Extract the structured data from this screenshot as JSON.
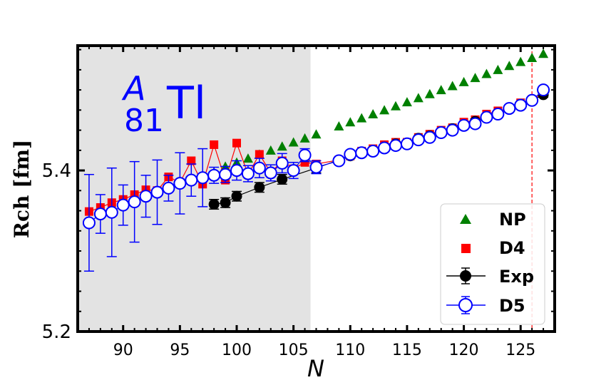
{
  "chart_data": {
    "type": "scatter",
    "title": "",
    "xlabel": "N",
    "ylabel": "Rch [fm]",
    "xlim": [
      86,
      128
    ],
    "ylim": [
      5.2,
      5.555
    ],
    "xticks": [
      90,
      95,
      100,
      105,
      110,
      115,
      120,
      125
    ],
    "yticks": [
      5.2,
      5.4
    ],
    "shaded_region": [
      86,
      106.5
    ],
    "reference_line_x": 126,
    "annotation": {
      "mass": "A",
      "charge": "81",
      "element": "Tl"
    },
    "legend_position": "lower-right",
    "series": [
      {
        "name": "NP",
        "marker": "triangle",
        "color": "#008000",
        "x": [
          98,
          99,
          100,
          101,
          102,
          103,
          104,
          105,
          106,
          107,
          109,
          110,
          111,
          112,
          113,
          114,
          115,
          116,
          117,
          118,
          119,
          120,
          121,
          122,
          123,
          124,
          125,
          126,
          127
        ],
        "y": [
          5.398,
          5.405,
          5.41,
          5.415,
          5.42,
          5.425,
          5.43,
          5.435,
          5.44,
          5.445,
          5.455,
          5.46,
          5.465,
          5.47,
          5.475,
          5.48,
          5.485,
          5.49,
          5.495,
          5.5,
          5.505,
          5.51,
          5.515,
          5.52,
          5.525,
          5.53,
          5.535,
          5.54,
          5.545
        ]
      },
      {
        "name": "D4",
        "marker": "square",
        "color": "#ff0000",
        "x": [
          87,
          88,
          89,
          90,
          91,
          92,
          93,
          94,
          95,
          96,
          97,
          98,
          99,
          100,
          101,
          102,
          103,
          104,
          105,
          106,
          107,
          109,
          110,
          111,
          112,
          113,
          114,
          115,
          116,
          117,
          118,
          119,
          120,
          121,
          122,
          123,
          124,
          125,
          126,
          127
        ],
        "y": [
          5.349,
          5.354,
          5.36,
          5.364,
          5.37,
          5.376,
          5.375,
          5.392,
          5.385,
          5.412,
          5.383,
          5.432,
          5.388,
          5.434,
          5.395,
          5.42,
          5.397,
          5.412,
          5.402,
          5.41,
          5.408,
          5.413,
          5.418,
          5.424,
          5.427,
          5.432,
          5.435,
          5.435,
          5.441,
          5.445,
          5.45,
          5.453,
          5.46,
          5.463,
          5.47,
          5.474,
          5.477,
          5.484,
          5.488,
          5.496
        ]
      },
      {
        "name": "Exp",
        "marker": "circle-filled",
        "color": "#000000",
        "x": [
          98,
          99,
          100,
          102,
          104,
          107,
          109,
          110,
          111,
          112,
          113,
          114,
          115,
          116,
          117,
          118,
          119,
          120,
          121,
          122,
          123,
          124,
          125,
          126,
          127
        ],
        "y": [
          5.358,
          5.36,
          5.368,
          5.379,
          5.389,
          5.403,
          5.413,
          5.418,
          5.422,
          5.425,
          5.429,
          5.433,
          5.434,
          5.44,
          5.443,
          5.448,
          5.452,
          5.457,
          5.461,
          5.467,
          5.47,
          5.476,
          5.481,
          5.487,
          5.494
        ],
        "err": [
          0.006,
          0.006,
          0.006,
          0.006,
          0.006,
          0.006,
          0.003,
          0.003,
          0.003,
          0.003,
          0.003,
          0.003,
          0.003,
          0.003,
          0.003,
          0.003,
          0.003,
          0.003,
          0.003,
          0.003,
          0.003,
          0.003,
          0.003,
          0.003,
          0.003
        ]
      },
      {
        "name": "D5",
        "marker": "circle-open",
        "color": "#0000ff",
        "x": [
          87,
          88,
          89,
          90,
          91,
          92,
          93,
          94,
          95,
          96,
          97,
          98,
          99,
          100,
          101,
          102,
          103,
          104,
          105,
          106,
          107,
          109,
          110,
          111,
          112,
          113,
          114,
          115,
          116,
          117,
          118,
          119,
          120,
          121,
          122,
          123,
          124,
          125,
          126,
          127
        ],
        "y": [
          5.335,
          5.346,
          5.348,
          5.357,
          5.361,
          5.368,
          5.373,
          5.378,
          5.384,
          5.388,
          5.391,
          5.394,
          5.395,
          5.4,
          5.396,
          5.403,
          5.397,
          5.409,
          5.4,
          5.419,
          5.404,
          5.412,
          5.42,
          5.422,
          5.424,
          5.428,
          5.431,
          5.433,
          5.438,
          5.441,
          5.447,
          5.45,
          5.456,
          5.458,
          5.466,
          5.47,
          5.477,
          5.481,
          5.487,
          5.5
        ],
        "err": [
          0.06,
          0.024,
          0.055,
          0.025,
          0.05,
          0.026,
          0.04,
          0.016,
          0.038,
          0.02,
          0.036,
          0.01,
          0.01,
          0.012,
          0.01,
          0.012,
          0.01,
          0.012,
          0.01,
          0.008,
          0.008,
          0.004,
          0.004,
          0.004,
          0.004,
          0.004,
          0.004,
          0.004,
          0.004,
          0.004,
          0.004,
          0.004,
          0.004,
          0.004,
          0.004,
          0.004,
          0.004,
          0.004,
          0.004,
          0.004
        ]
      }
    ]
  }
}
